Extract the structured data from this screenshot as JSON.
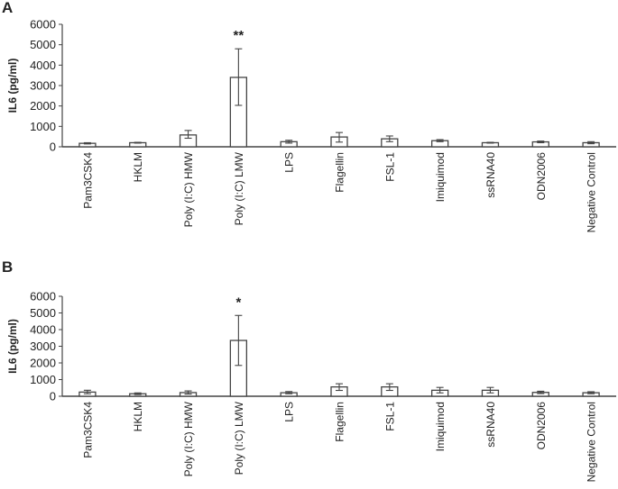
{
  "figure": {
    "panels": [
      {
        "letter": "A",
        "ylabel": "IL6 (pg/ml)"
      },
      {
        "letter": "B",
        "ylabel": "IL6 (pg/ml)"
      }
    ]
  },
  "chart_data": [
    {
      "type": "bar",
      "title": "A",
      "xlabel": "",
      "ylabel": "IL6 (pg/ml)",
      "ylim": [
        0,
        6000
      ],
      "yticks": [
        0,
        1000,
        2000,
        3000,
        4000,
        5000,
        6000
      ],
      "grid": false,
      "categories": [
        "Pam3CSK4",
        "HKLM",
        "Poly (I:C) HMW",
        "Poly (I:C) LMW",
        "LPS",
        "Flagellin",
        "FSL-1",
        "Imiquimod",
        "ssRNA40",
        "ODN2006",
        "Negative Control"
      ],
      "values": [
        170,
        200,
        580,
        3400,
        250,
        480,
        390,
        300,
        200,
        240,
        200
      ],
      "error_low": [
        140,
        180,
        420,
        2030,
        180,
        230,
        250,
        250,
        180,
        200,
        150
      ],
      "error_high": [
        200,
        220,
        800,
        4800,
        320,
        700,
        530,
        350,
        220,
        280,
        250
      ],
      "annotations": [
        {
          "category": "Poly (I:C) LMW",
          "text": "**"
        }
      ]
    },
    {
      "type": "bar",
      "title": "B",
      "xlabel": "",
      "ylabel": "IL6 (pg/ml)",
      "ylim": [
        0,
        6000
      ],
      "yticks": [
        0,
        1000,
        2000,
        3000,
        4000,
        5000,
        6000
      ],
      "grid": false,
      "categories": [
        "Pam3CSK4",
        "HKLM",
        "Poly (I:C) HMW",
        "Poly (I:C) LMW",
        "LPS",
        "Flagellin",
        "FSL-1",
        "Imiquimod",
        "ssRNA40",
        "ODN2006",
        "Negative Control"
      ],
      "values": [
        250,
        150,
        220,
        3350,
        210,
        560,
        560,
        360,
        360,
        230,
        210
      ],
      "error_low": [
        150,
        100,
        130,
        1850,
        150,
        350,
        350,
        200,
        200,
        160,
        150
      ],
      "error_high": [
        360,
        200,
        320,
        4850,
        280,
        750,
        750,
        530,
        530,
        300,
        270
      ],
      "annotations": [
        {
          "category": "Poly (I:C) LMW",
          "text": "*"
        }
      ]
    }
  ]
}
